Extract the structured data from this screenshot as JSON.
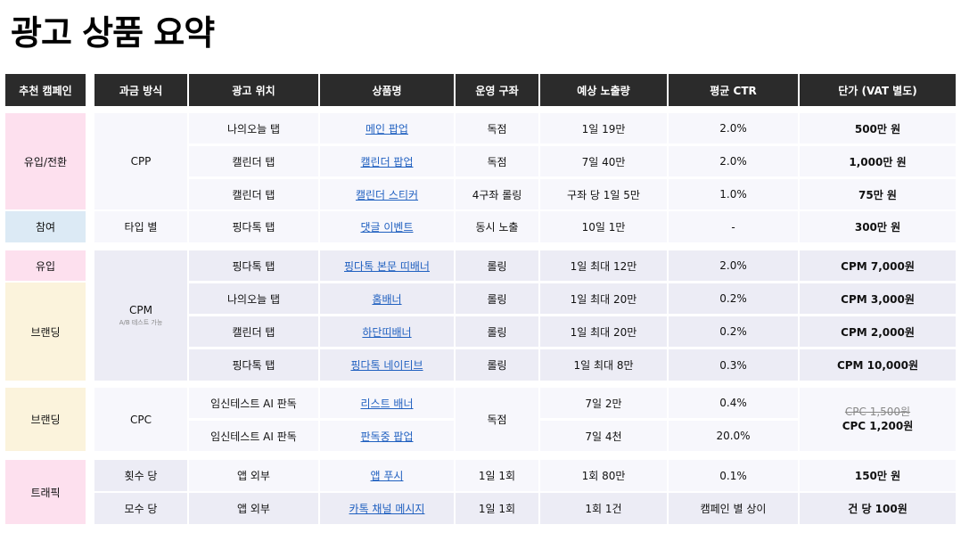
{
  "title": "광고 상품 요약",
  "headers": {
    "campaign": "추천 캠페인",
    "billing": "과금 방식",
    "position": "광고 위치",
    "product": "상품명",
    "slot": "운영 구좌",
    "exposure": "예상 노출량",
    "ctr": "평균 CTR",
    "price": "단가 (VAT 별도)"
  },
  "campaigns": {
    "c1": "유입/전환",
    "c2": "참여",
    "c3": "유입",
    "c4": "브랜딩",
    "c5": "브랜딩",
    "c6": "트래픽"
  },
  "billing": {
    "b1": "CPP",
    "b2": "타입 별",
    "b3": "CPM",
    "b3_note": "A/B 테스트 가능",
    "b4": "CPC",
    "b5": "횟수 당",
    "b6": "모수 당"
  },
  "rows": [
    {
      "position": "나의오늘 탭",
      "product": "메인 팝업",
      "slot": "독점",
      "exposure": "1일 19만",
      "ctr": "2.0%",
      "price": "500만 원"
    },
    {
      "position": "캘린더 탭",
      "product": "캘린더 팝업",
      "slot": "독점",
      "exposure": "7일 40만",
      "ctr": "2.0%",
      "price": "1,000만 원"
    },
    {
      "position": "캘린더 탭",
      "product": "캘린더 스티커",
      "slot": "4구좌 롤링",
      "exposure": "구좌 당 1일 5만",
      "ctr": "1.0%",
      "price": "75만 원"
    },
    {
      "position": "핑다톡 탭",
      "product": "댓글 이벤트",
      "slot": "동시 노출",
      "exposure": "10일 1만",
      "ctr": "-",
      "price": "300만 원"
    },
    {
      "position": "핑다톡 탭",
      "product": "핑다톡 본문 띠배너",
      "slot": "롤링",
      "exposure": "1일 최대 12만",
      "ctr": "2.0%",
      "price": "CPM 7,000원"
    },
    {
      "position": "나의오늘 탭",
      "product": "홈배너",
      "slot": "롤링",
      "exposure": "1일 최대 20만",
      "ctr": "0.2%",
      "price": "CPM 3,000원"
    },
    {
      "position": "캘린더 탭",
      "product": "하단띠배너",
      "slot": "롤링",
      "exposure": "1일 최대 20만",
      "ctr": "0.2%",
      "price": "CPM 2,000원"
    },
    {
      "position": "핑다톡 탭",
      "product": "핑다톡 네이티브",
      "slot": "롤링",
      "exposure": "1일 최대 8만",
      "ctr": "0.3%",
      "price": "CPM 10,000원"
    },
    {
      "position": "임신테스트 AI 판독",
      "product": "리스트 배너",
      "exposure": "7일 2만",
      "ctr": "0.4%"
    },
    {
      "position": "임신테스트 AI 판독",
      "product": "판독중 팝업",
      "exposure": "7일 4천",
      "ctr": "20.0%"
    },
    {
      "position": "앱 외부",
      "product": "앱 푸시",
      "slot": "1일 1회",
      "exposure": "1회 80만",
      "ctr": "0.1%",
      "price": "150만 원"
    },
    {
      "position": "앱 외부",
      "product": "카톡 채널 메시지",
      "slot": "1일 1회",
      "exposure": "1회 1건",
      "ctr": "캠페인 별 상이",
      "price": "건 당 100원"
    }
  ],
  "cpc_group": {
    "slot": "독점",
    "price_old": "CPC 1,500원",
    "price_new": "CPC 1,200원"
  }
}
